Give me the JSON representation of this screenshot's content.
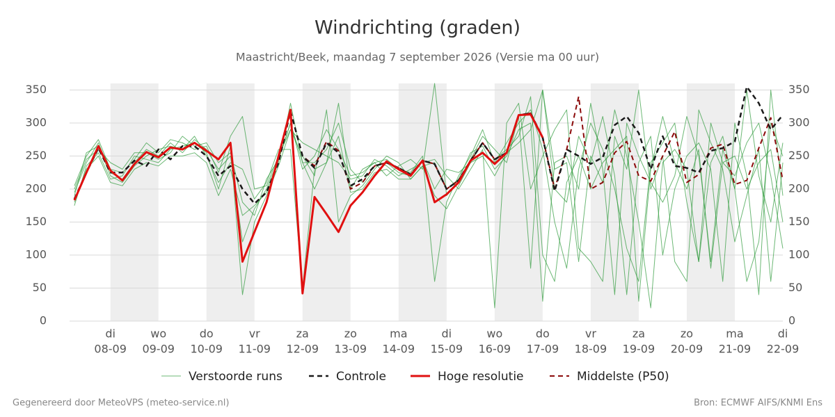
{
  "chart_data": {
    "type": "line",
    "title": "Windrichting (graden)",
    "subtitle": "Maastricht/Beek, maandag  7 september 2026 (Versie ma 00 uur)",
    "footer_left": "Gegenereerd door MeteoVPS (meteo-service.nl)",
    "footer_right": "Bron: ECMWF AIFS/KNMI Ens",
    "x": [
      0.25,
      0.5,
      0.75,
      1,
      1.25,
      1.5,
      1.75,
      2,
      2.25,
      2.5,
      2.75,
      3,
      3.25,
      3.5,
      3.75,
      4,
      4.25,
      4.5,
      4.75,
      5,
      5.25,
      5.5,
      5.75,
      6,
      6.25,
      6.5,
      6.75,
      7,
      7.25,
      7.5,
      7.75,
      8,
      8.25,
      8.5,
      8.75,
      9,
      9.25,
      9.5,
      9.75,
      10,
      10.25,
      10.5,
      10.75,
      11,
      11.25,
      11.5,
      11.75,
      12,
      12.25,
      12.5,
      12.75,
      13,
      13.25,
      13.5,
      13.75,
      14,
      14.25,
      14.5,
      14.75,
      15
    ],
    "xlim": [
      0.15,
      15
    ],
    "xticks": [
      {
        "value": 1,
        "label": [
          "di",
          "08-09"
        ]
      },
      {
        "value": 2,
        "label": [
          "wo",
          "09-09"
        ]
      },
      {
        "value": 3,
        "label": [
          "do",
          "10-09"
        ]
      },
      {
        "value": 4,
        "label": [
          "vr",
          "11-09"
        ]
      },
      {
        "value": 5,
        "label": [
          "za",
          "12-09"
        ]
      },
      {
        "value": 6,
        "label": [
          "zo",
          "13-09"
        ]
      },
      {
        "value": 7,
        "label": [
          "ma",
          "14-09"
        ]
      },
      {
        "value": 8,
        "label": [
          "di",
          "15-09"
        ]
      },
      {
        "value": 9,
        "label": [
          "wo",
          "16-09"
        ]
      },
      {
        "value": 10,
        "label": [
          "do",
          "17-09"
        ]
      },
      {
        "value": 11,
        "label": [
          "vr",
          "18-09"
        ]
      },
      {
        "value": 12,
        "label": [
          "za",
          "19-09"
        ]
      },
      {
        "value": 13,
        "label": [
          "zo",
          "20-09"
        ]
      },
      {
        "value": 14,
        "label": [
          "ma",
          "21-09"
        ]
      },
      {
        "value": 15,
        "label": [
          "di",
          "22-09"
        ]
      }
    ],
    "ylim": [
      0,
      360
    ],
    "yticks": [
      0,
      50,
      100,
      150,
      200,
      250,
      300,
      350
    ],
    "grid": true,
    "series": [
      {
        "name": "Verstoorde runs",
        "color": "#2e9a3a",
        "line_style": "solid",
        "line_width": 1,
        "opacity": 0.7,
        "members": [
          [
            195,
            240,
            270,
            225,
            215,
            240,
            260,
            250,
            270,
            255,
            275,
            260,
            230,
            250,
            120,
            170,
            200,
            245,
            300,
            230,
            250,
            290,
            260,
            220,
            225,
            240,
            245,
            230,
            225,
            250,
            60,
            180,
            220,
            250,
            290,
            240,
            270,
            300,
            320,
            260,
            150,
            80,
            230,
            300,
            260,
            200,
            110,
            60,
            240,
            270,
            300,
            180,
            90,
            240,
            280,
            200,
            60,
            120,
            300,
            250
          ],
          [
            175,
            235,
            255,
            215,
            220,
            250,
            245,
            240,
            260,
            265,
            270,
            255,
            200,
            265,
            40,
            150,
            190,
            235,
            290,
            250,
            220,
            320,
            150,
            190,
            205,
            230,
            250,
            240,
            215,
            235,
            240,
            200,
            215,
            255,
            265,
            230,
            250,
            290,
            300,
            30,
            240,
            250,
            200,
            330,
            230,
            40,
            300,
            250,
            210,
            180,
            220,
            310,
            250,
            90,
            260,
            200,
            350,
            220,
            150,
            270
          ],
          [
            205,
            250,
            275,
            230,
            225,
            245,
            270,
            255,
            275,
            270,
            260,
            265,
            225,
            280,
            310,
            200,
            205,
            250,
            290,
            270,
            260,
            250,
            240,
            215,
            220,
            245,
            235,
            220,
            230,
            240,
            245,
            220,
            200,
            230,
            260,
            20,
            300,
            330,
            200,
            250,
            290,
            320,
            110,
            90,
            60,
            280,
            230,
            350,
            200,
            250,
            90,
            60,
            320,
            270,
            230,
            120,
            190,
            260,
            60,
            240
          ],
          [
            190,
            255,
            265,
            220,
            210,
            235,
            250,
            260,
            265,
            260,
            280,
            250,
            210,
            240,
            230,
            185,
            210,
            260,
            260,
            50,
            230,
            240,
            330,
            200,
            230,
            240,
            220,
            235,
            245,
            230,
            360,
            190,
            210,
            245,
            280,
            260,
            240,
            310,
            80,
            350,
            200,
            180,
            280,
            240,
            310,
            220,
            40,
            240,
            280,
            100,
            200,
            250,
            270,
            230,
            60,
            300,
            220,
            40,
            350,
            190
          ],
          [
            200,
            245,
            260,
            240,
            230,
            255,
            255,
            245,
            255,
            280,
            265,
            270,
            240,
            255,
            180,
            160,
            215,
            245,
            300,
            240,
            240,
            260,
            300,
            230,
            210,
            235,
            240,
            225,
            220,
            245,
            200,
            230,
            225,
            240,
            270,
            245,
            260,
            280,
            340,
            100,
            60,
            210,
            250,
            200,
            240,
            260,
            280,
            30,
            230,
            310,
            240,
            200,
            260,
            80,
            240,
            220,
            270,
            300,
            220,
            110
          ],
          [
            180,
            230,
            250,
            210,
            205,
            230,
            240,
            235,
            250,
            250,
            255,
            240,
            190,
            230,
            160,
            175,
            195,
            240,
            330,
            240,
            200,
            240,
            280,
            195,
            200,
            225,
            230,
            215,
            215,
            235,
            190,
            170,
            205,
            240,
            250,
            220,
            255,
            270,
            290,
            350,
            230,
            240,
            90,
            250,
            210,
            320,
            250,
            150,
            20,
            240,
            260,
            230,
            90,
            300,
            240,
            250,
            200,
            240,
            260,
            150
          ]
        ]
      },
      {
        "name": "Controle",
        "color": "#1a1a1a",
        "line_style": "dashed",
        "line_width": 2.5,
        "values": [
          185,
          225,
          262,
          225,
          225,
          243,
          235,
          260,
          245,
          265,
          265,
          250,
          220,
          235,
          200,
          178,
          195,
          240,
          318,
          250,
          232,
          270,
          255,
          205,
          215,
          235,
          240,
          232,
          222,
          243,
          238,
          200,
          213,
          243,
          270,
          245,
          255,
          312,
          315,
          278,
          197,
          260,
          250,
          238,
          248,
          297,
          310,
          285,
          230,
          280,
          235,
          232,
          225,
          258,
          262,
          272,
          355,
          330,
          290,
          312
        ]
      },
      {
        "name": "Hoge resolutie",
        "color": "#e01010",
        "line_style": "solid",
        "line_width": 3,
        "values": [
          183,
          225,
          265,
          228,
          213,
          238,
          256,
          248,
          263,
          260,
          270,
          258,
          245,
          270,
          90,
          135,
          180,
          250,
          320,
          42,
          188,
          162,
          135,
          175,
          195,
          220,
          242,
          230,
          220,
          243,
          180,
          192,
          210,
          243,
          255,
          238,
          255,
          312,
          313,
          278,
          null,
          null,
          null,
          null,
          null,
          null,
          null,
          null,
          null,
          null,
          null,
          null,
          null,
          null,
          null,
          null,
          null,
          null,
          null,
          null
        ]
      },
      {
        "name": "Middelste (P50)",
        "color": "#8b0a0a",
        "line_style": "dashed",
        "line_width": 2,
        "values": [
          185,
          225,
          262,
          225,
          225,
          243,
          235,
          260,
          245,
          265,
          265,
          250,
          220,
          235,
          200,
          178,
          195,
          240,
          318,
          250,
          235,
          272,
          258,
          200,
          210,
          235,
          240,
          232,
          222,
          243,
          238,
          200,
          213,
          243,
          270,
          245,
          255,
          312,
          315,
          278,
          200,
          260,
          340,
          200,
          210,
          255,
          272,
          220,
          212,
          250,
          287,
          210,
          222,
          262,
          268,
          207,
          213,
          262,
          308,
          213
        ]
      }
    ]
  }
}
